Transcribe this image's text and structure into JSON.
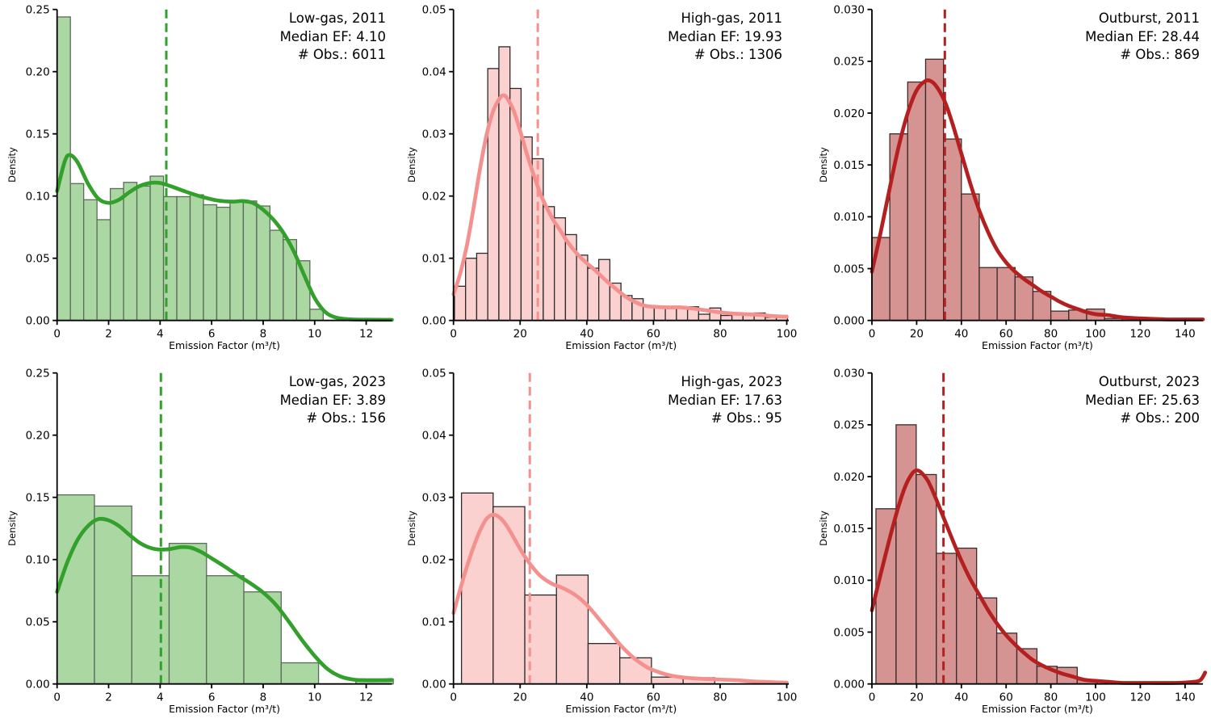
{
  "figure": {
    "background": "#ffffff",
    "rows": [
      "2011",
      "2023"
    ],
    "columns": [
      "Low-gas",
      "High-gas",
      "Outburst"
    ]
  },
  "chart_data": [
    {
      "type": "histogram+kde",
      "title": "Low-gas, 2011",
      "median_label": "Median EF: 4.10",
      "obs_label": "# Obs.: 6011",
      "median_ef": 4.1,
      "n_obs": 6011,
      "xlabel": "Emission Factor (m³/t)",
      "ylabel": "Density",
      "x_range": [
        0,
        13
      ],
      "y_range": [
        0,
        0.25
      ],
      "x_ticks": [
        0,
        2,
        4,
        6,
        8,
        10,
        12
      ],
      "y_ticks": [
        0,
        0.05,
        0.1,
        0.15,
        0.2,
        0.25
      ],
      "y_tick_decimals": 2,
      "dashed_line_x": 4.24,
      "colors": {
        "fill": "#abd7a3",
        "edge": "#5a6b5a",
        "line": "#33a02c"
      },
      "bins": {
        "start": 0,
        "width": 0.5165
      },
      "bar_heights": [
        0.244,
        0.11,
        0.097,
        0.081,
        0.106,
        0.111,
        0.108,
        0.116,
        0.0995,
        0.0995,
        0.101,
        0.093,
        0.091,
        0.096,
        0.096,
        0.092,
        0.0725,
        0.065,
        0.048,
        0.009
      ],
      "kde": [
        [
          0,
          0.104
        ],
        [
          0.3,
          0.128
        ],
        [
          0.5,
          0.133
        ],
        [
          0.8,
          0.127
        ],
        [
          1.2,
          0.11
        ],
        [
          1.6,
          0.098
        ],
        [
          2.0,
          0.0945
        ],
        [
          2.4,
          0.097
        ],
        [
          2.8,
          0.103
        ],
        [
          3.2,
          0.108
        ],
        [
          3.6,
          0.1105
        ],
        [
          4.0,
          0.1105
        ],
        [
          4.4,
          0.108
        ],
        [
          5.0,
          0.1035
        ],
        [
          5.6,
          0.0995
        ],
        [
          6.2,
          0.0965
        ],
        [
          6.8,
          0.0955
        ],
        [
          7.2,
          0.096
        ],
        [
          7.6,
          0.0945
        ],
        [
          8.0,
          0.089
        ],
        [
          8.4,
          0.081
        ],
        [
          8.8,
          0.07
        ],
        [
          9.2,
          0.055
        ],
        [
          9.6,
          0.036
        ],
        [
          10.0,
          0.018
        ],
        [
          10.4,
          0.007
        ],
        [
          10.8,
          0.0025
        ],
        [
          11.3,
          0.001
        ],
        [
          12.0,
          0.0006
        ],
        [
          13.0,
          0.0005
        ]
      ]
    },
    {
      "type": "histogram+kde",
      "title": "High-gas, 2011",
      "median_label": "Median EF: 19.93",
      "obs_label": "# Obs.: 1306",
      "median_ef": 19.93,
      "n_obs": 1306,
      "xlabel": "Emission Factor (m³/t)",
      "ylabel": "Density",
      "x_range": [
        0,
        100.6
      ],
      "y_range": [
        0,
        0.05
      ],
      "x_ticks": [
        0,
        20,
        40,
        60,
        80,
        100
      ],
      "y_ticks": [
        0,
        0.01,
        0.02,
        0.03,
        0.04,
        0.05
      ],
      "y_tick_decimals": 2,
      "dashed_line_x": 25.3,
      "colors": {
        "fill": "#fbd1d0",
        "edge": "#2b2b2b",
        "line": "#f4908e"
      },
      "bins": {
        "start": 0.3,
        "width": 3.33
      },
      "bar_heights": [
        0.0055,
        0.01,
        0.0108,
        0.0405,
        0.044,
        0.0373,
        0.0295,
        0.026,
        0.0183,
        0.0165,
        0.0138,
        0.0105,
        0.0084,
        0.0098,
        0.006,
        0.004,
        0.0035,
        0.0022,
        0.002,
        0.002,
        0.0022,
        0.0022,
        0.001,
        0.002,
        0.0008,
        0.001,
        0.001,
        0.0012,
        0.0005,
        0.0008
      ],
      "kde": [
        [
          0,
          0.0042
        ],
        [
          2,
          0.0075
        ],
        [
          4,
          0.012
        ],
        [
          6,
          0.018
        ],
        [
          8,
          0.0245
        ],
        [
          10,
          0.03
        ],
        [
          12,
          0.0338
        ],
        [
          14,
          0.0358
        ],
        [
          15,
          0.0362
        ],
        [
          16,
          0.0358
        ],
        [
          18,
          0.0338
        ],
        [
          20,
          0.0305
        ],
        [
          22,
          0.0268
        ],
        [
          24,
          0.0235
        ],
        [
          26,
          0.0205
        ],
        [
          28,
          0.0181
        ],
        [
          30,
          0.0161
        ],
        [
          32,
          0.0145
        ],
        [
          34,
          0.0128
        ],
        [
          36,
          0.0114
        ],
        [
          38,
          0.0102
        ],
        [
          40,
          0.0092
        ],
        [
          42,
          0.0083
        ],
        [
          44,
          0.0073
        ],
        [
          46,
          0.0063
        ],
        [
          48,
          0.0054
        ],
        [
          50,
          0.0045
        ],
        [
          52,
          0.0037
        ],
        [
          54,
          0.0031
        ],
        [
          56,
          0.0026
        ],
        [
          58,
          0.0023
        ],
        [
          60,
          0.0022
        ],
        [
          64,
          0.0021
        ],
        [
          68,
          0.0021
        ],
        [
          72,
          0.0019
        ],
        [
          76,
          0.0016
        ],
        [
          80,
          0.0013
        ],
        [
          84,
          0.0011
        ],
        [
          88,
          0.001
        ],
        [
          92,
          0.0009
        ],
        [
          96,
          0.0007
        ],
        [
          100,
          0.0006
        ]
      ]
    },
    {
      "type": "histogram+kde",
      "title": "Outburst, 2011",
      "median_label": "Median EF: 28.44",
      "obs_label": "# Obs.: 869",
      "median_ef": 28.44,
      "n_obs": 869,
      "xlabel": "Emission Factor (m³/t)",
      "ylabel": "Density",
      "x_range": [
        0,
        148
      ],
      "y_range": [
        0,
        0.03
      ],
      "x_ticks": [
        0,
        20,
        40,
        60,
        80,
        100,
        120,
        140
      ],
      "y_ticks": [
        0,
        0.005,
        0.01,
        0.015,
        0.02,
        0.025,
        0.03
      ],
      "y_tick_decimals": 3,
      "dashed_line_x": 32.6,
      "colors": {
        "fill": "#d59392",
        "edge": "#3c2a2a",
        "line": "#b42020"
      },
      "bins": {
        "start": 0,
        "width": 8
      },
      "bar_heights": [
        0.008,
        0.018,
        0.023,
        0.0252,
        0.0175,
        0.0122,
        0.0051,
        0.0051,
        0.0042,
        0.0028,
        0.0009,
        0.001,
        0.0011,
        0.0002,
        0.0002
      ],
      "kde": [
        [
          0,
          0.0047
        ],
        [
          4,
          0.0086
        ],
        [
          8,
          0.0128
        ],
        [
          12,
          0.0168
        ],
        [
          16,
          0.02
        ],
        [
          20,
          0.0222
        ],
        [
          24,
          0.0231
        ],
        [
          27,
          0.023
        ],
        [
          30,
          0.0222
        ],
        [
          33,
          0.0209
        ],
        [
          36,
          0.019
        ],
        [
          40,
          0.0161
        ],
        [
          44,
          0.0132
        ],
        [
          48,
          0.0106
        ],
        [
          52,
          0.0085
        ],
        [
          56,
          0.0068
        ],
        [
          60,
          0.0056
        ],
        [
          64,
          0.0047
        ],
        [
          68,
          0.004
        ],
        [
          72,
          0.0034
        ],
        [
          76,
          0.0028
        ],
        [
          80,
          0.0023
        ],
        [
          84,
          0.0018
        ],
        [
          88,
          0.0014
        ],
        [
          92,
          0.0011
        ],
        [
          96,
          0.0008
        ],
        [
          100,
          0.0006
        ],
        [
          106,
          0.0005
        ],
        [
          112,
          0.0003
        ],
        [
          120,
          0.0002
        ],
        [
          132,
          0.0001
        ],
        [
          148,
          0.0001
        ]
      ]
    },
    {
      "type": "histogram+kde",
      "title": "Low-gas, 2023",
      "median_label": "Median EF: 3.89",
      "obs_label": "# Obs.: 156",
      "median_ef": 3.89,
      "n_obs": 156,
      "xlabel": "Emission Factor (m³/t)",
      "ylabel": "Density",
      "x_range": [
        0,
        13
      ],
      "y_range": [
        0,
        0.25
      ],
      "x_ticks": [
        0,
        2,
        4,
        6,
        8,
        10,
        12
      ],
      "y_ticks": [
        0,
        0.05,
        0.1,
        0.15,
        0.2,
        0.25
      ],
      "y_tick_decimals": 2,
      "dashed_line_x": 4.03,
      "colors": {
        "fill": "#abd7a3",
        "edge": "#5a6b5a",
        "line": "#33a02c"
      },
      "bins": {
        "start": 0,
        "width": 1.45
      },
      "bar_heights": [
        0.152,
        0.143,
        0.087,
        0.113,
        0.087,
        0.074,
        0.017,
        0,
        0.004
      ],
      "kde": [
        [
          0,
          0.074
        ],
        [
          0.4,
          0.098
        ],
        [
          0.8,
          0.116
        ],
        [
          1.2,
          0.127
        ],
        [
          1.6,
          0.1325
        ],
        [
          2.0,
          0.1315
        ],
        [
          2.4,
          0.127
        ],
        [
          2.8,
          0.12
        ],
        [
          3.2,
          0.1135
        ],
        [
          3.6,
          0.1095
        ],
        [
          4.0,
          0.108
        ],
        [
          4.4,
          0.1085
        ],
        [
          4.8,
          0.11
        ],
        [
          5.2,
          0.1095
        ],
        [
          5.6,
          0.106
        ],
        [
          6.0,
          0.101
        ],
        [
          6.5,
          0.0945
        ],
        [
          7.0,
          0.0875
        ],
        [
          7.5,
          0.081
        ],
        [
          8.0,
          0.0735
        ],
        [
          8.5,
          0.0635
        ],
        [
          9.0,
          0.05
        ],
        [
          9.5,
          0.0355
        ],
        [
          10.0,
          0.0225
        ],
        [
          10.5,
          0.012
        ],
        [
          11.0,
          0.006
        ],
        [
          11.5,
          0.0035
        ],
        [
          12.0,
          0.003
        ],
        [
          12.5,
          0.003
        ],
        [
          13.0,
          0.0032
        ]
      ]
    },
    {
      "type": "histogram+kde",
      "title": "High-gas, 2023",
      "median_label": "Median EF: 17.63",
      "obs_label": "# Obs.: 95",
      "median_ef": 17.63,
      "n_obs": 95,
      "xlabel": "Emission Factor (m³/t)",
      "ylabel": "Density",
      "x_range": [
        0,
        100.6
      ],
      "y_range": [
        0,
        0.05
      ],
      "x_ticks": [
        0,
        20,
        40,
        60,
        80,
        100
      ],
      "y_ticks": [
        0,
        0.01,
        0.02,
        0.03,
        0.04,
        0.05
      ],
      "y_tick_decimals": 2,
      "dashed_line_x": 22.9,
      "colors": {
        "fill": "#fbd1d0",
        "edge": "#2b2b2b",
        "line": "#f4908e"
      },
      "bins": {
        "start": 2.4,
        "width": 9.5
      },
      "bar_heights": [
        0.0307,
        0.0285,
        0.0143,
        0.0175,
        0.0065,
        0.0042,
        0.0011,
        0.001
      ],
      "kde": [
        [
          0,
          0.0114
        ],
        [
          2,
          0.0152
        ],
        [
          4,
          0.0188
        ],
        [
          6,
          0.022
        ],
        [
          8,
          0.0247
        ],
        [
          10,
          0.0266
        ],
        [
          12,
          0.0272
        ],
        [
          14,
          0.0267
        ],
        [
          16,
          0.0254
        ],
        [
          18,
          0.0236
        ],
        [
          20,
          0.0217
        ],
        [
          22,
          0.02
        ],
        [
          24,
          0.0186
        ],
        [
          26,
          0.0174
        ],
        [
          28,
          0.0166
        ],
        [
          30,
          0.016
        ],
        [
          32,
          0.0156
        ],
        [
          34,
          0.0151
        ],
        [
          36,
          0.0145
        ],
        [
          38,
          0.0137
        ],
        [
          40,
          0.0127
        ],
        [
          42,
          0.0115
        ],
        [
          44,
          0.0102
        ],
        [
          46,
          0.0089
        ],
        [
          48,
          0.0076
        ],
        [
          50,
          0.0063
        ],
        [
          52,
          0.0052
        ],
        [
          54,
          0.0042
        ],
        [
          56,
          0.0034
        ],
        [
          58,
          0.0027
        ],
        [
          60,
          0.0022
        ],
        [
          64,
          0.0015
        ],
        [
          68,
          0.0011
        ],
        [
          72,
          0.0009
        ],
        [
          76,
          0.0008
        ],
        [
          80,
          0.0007
        ],
        [
          85,
          0.0006
        ],
        [
          90,
          0.0004
        ],
        [
          95,
          0.0003
        ],
        [
          100,
          0.0002
        ]
      ]
    },
    {
      "type": "histogram+kde",
      "title": "Outburst, 2023",
      "median_label": "Median EF: 25.63",
      "obs_label": "# Obs.: 200",
      "median_ef": 25.63,
      "n_obs": 200,
      "xlabel": "Emission Factor (m³/t)",
      "ylabel": "Density",
      "x_range": [
        0,
        148
      ],
      "y_range": [
        0,
        0.03
      ],
      "x_ticks": [
        0,
        20,
        40,
        60,
        80,
        100,
        120,
        140
      ],
      "y_ticks": [
        0,
        0.005,
        0.01,
        0.015,
        0.02,
        0.025,
        0.03
      ],
      "y_tick_decimals": 3,
      "dashed_line_x": 32.0,
      "colors": {
        "fill": "#d59392",
        "edge": "#3c2a2a",
        "line": "#b42020"
      },
      "bins": {
        "start": 1.8,
        "width": 9.0
      },
      "bar_heights": [
        0.0169,
        0.025,
        0.0202,
        0.0126,
        0.0131,
        0.0083,
        0.0049,
        0.0034,
        0.0017,
        0.0016,
        0.0004
      ],
      "kde": [
        [
          0,
          0.0071
        ],
        [
          3,
          0.0098
        ],
        [
          6,
          0.0124
        ],
        [
          9,
          0.0149
        ],
        [
          12,
          0.0172
        ],
        [
          15,
          0.0191
        ],
        [
          18,
          0.0203
        ],
        [
          20,
          0.0206
        ],
        [
          22,
          0.0204
        ],
        [
          25,
          0.0196
        ],
        [
          28,
          0.0182
        ],
        [
          31,
          0.0166
        ],
        [
          34,
          0.015
        ],
        [
          37,
          0.0134
        ],
        [
          40,
          0.0119
        ],
        [
          44,
          0.0101
        ],
        [
          48,
          0.0086
        ],
        [
          52,
          0.0071
        ],
        [
          56,
          0.0058
        ],
        [
          60,
          0.0047
        ],
        [
          64,
          0.0038
        ],
        [
          68,
          0.003
        ],
        [
          72,
          0.0023
        ],
        [
          76,
          0.0018
        ],
        [
          80,
          0.0014
        ],
        [
          85,
          0.001
        ],
        [
          90,
          0.0007
        ],
        [
          95,
          0.0004
        ],
        [
          100,
          0.0003
        ],
        [
          106,
          0.0002
        ],
        [
          112,
          0.0001
        ],
        [
          124,
          0.0001
        ],
        [
          136,
          0.0001
        ],
        [
          144,
          0.0002
        ],
        [
          147,
          0.0004
        ],
        [
          149,
          0.0011
        ]
      ]
    }
  ]
}
